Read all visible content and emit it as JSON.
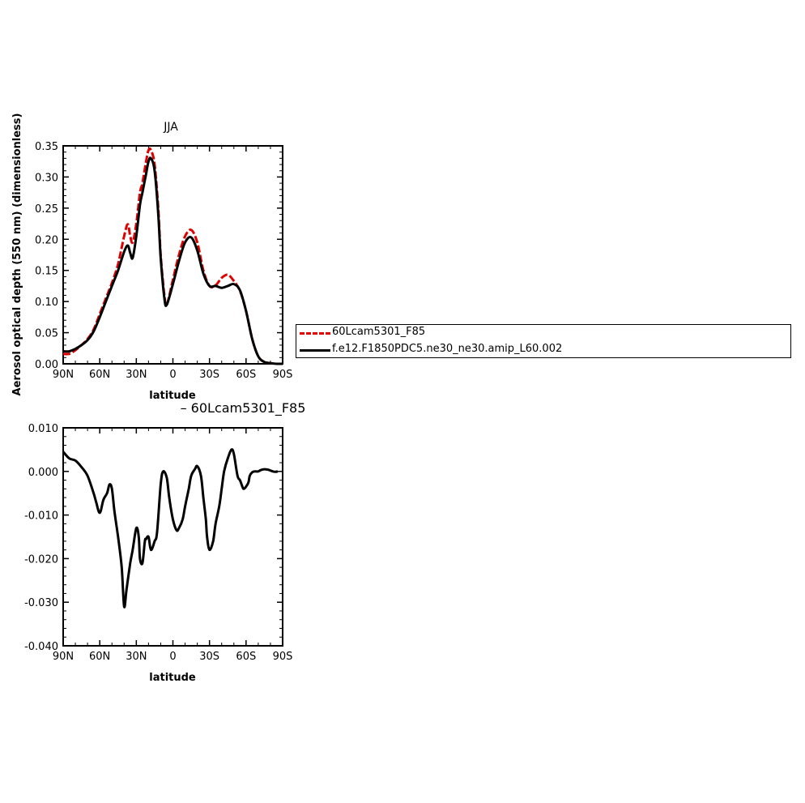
{
  "chart_data": [
    {
      "type": "line",
      "title": "JJA",
      "xlabel": "latitude",
      "ylabel": "Aerosol optical depth (550 nm) (dimensionless)",
      "x_ticks": [
        "90N",
        "60N",
        "30N",
        "0",
        "30S",
        "60S",
        "90S"
      ],
      "y_ticks": [
        "0.00",
        "0.05",
        "0.10",
        "0.15",
        "0.20",
        "0.25",
        "0.30",
        "0.35"
      ],
      "xlim": [
        90,
        -90
      ],
      "ylim": [
        0,
        0.35
      ],
      "grid": false,
      "legend_position": "right",
      "series": [
        {
          "name": "60Lcam5301_F85",
          "color": "#e00000",
          "dashed": true,
          "x": [
            90,
            85,
            80,
            75,
            70,
            65,
            60,
            55,
            50,
            45,
            40,
            37,
            35,
            33,
            30,
            27,
            25,
            22,
            20,
            18,
            15,
            12,
            10,
            7,
            5,
            0,
            -5,
            -10,
            -15,
            -20,
            -25,
            -30,
            -35,
            -40,
            -45,
            -50,
            -55,
            -60,
            -65,
            -70,
            -75,
            -80,
            -85,
            -90
          ],
          "y": [
            0.016,
            0.016,
            0.022,
            0.03,
            0.04,
            0.055,
            0.08,
            0.105,
            0.13,
            0.16,
            0.205,
            0.224,
            0.205,
            0.195,
            0.225,
            0.275,
            0.29,
            0.325,
            0.343,
            0.343,
            0.32,
            0.25,
            0.175,
            0.11,
            0.095,
            0.135,
            0.175,
            0.205,
            0.215,
            0.195,
            0.15,
            0.125,
            0.126,
            0.138,
            0.143,
            0.133,
            0.117,
            0.085,
            0.04,
            0.012,
            0.003,
            0.001,
            0.0,
            0.0
          ]
        },
        {
          "name": "f.e12.F1850PDC5.ne30_ne30.amip_L60.002",
          "color": "#000000",
          "dashed": false,
          "x": [
            90,
            85,
            80,
            75,
            70,
            65,
            60,
            55,
            50,
            45,
            40,
            37,
            35,
            33,
            30,
            27,
            25,
            22,
            20,
            18,
            15,
            12,
            10,
            7,
            5,
            0,
            -5,
            -10,
            -15,
            -20,
            -25,
            -30,
            -35,
            -40,
            -45,
            -50,
            -55,
            -60,
            -65,
            -70,
            -75,
            -80,
            -85,
            -90
          ],
          "y": [
            0.02,
            0.02,
            0.024,
            0.03,
            0.038,
            0.052,
            0.075,
            0.1,
            0.125,
            0.15,
            0.18,
            0.19,
            0.178,
            0.17,
            0.205,
            0.255,
            0.275,
            0.305,
            0.325,
            0.33,
            0.31,
            0.24,
            0.17,
            0.105,
            0.095,
            0.128,
            0.165,
            0.195,
            0.203,
            0.182,
            0.145,
            0.125,
            0.125,
            0.122,
            0.125,
            0.128,
            0.118,
            0.085,
            0.04,
            0.012,
            0.003,
            0.001,
            0.0,
            0.0
          ]
        }
      ]
    },
    {
      "type": "line",
      "title": "60Lcam5301_F85",
      "title_prefix": "–",
      "xlabel": "latitude",
      "x_ticks": [
        "90N",
        "60N",
        "30N",
        "0",
        "30S",
        "60S",
        "90S"
      ],
      "y_ticks": [
        "0.010",
        "0.000",
        "-0.010",
        "-0.020",
        "-0.030",
        "-0.040"
      ],
      "xlim": [
        90,
        -90
      ],
      "ylim": [
        -0.04,
        0.01
      ],
      "grid": false,
      "series": [
        {
          "color": "#000000",
          "x": [
            90,
            85,
            80,
            75,
            70,
            65,
            63,
            60,
            57,
            54,
            52,
            50,
            48,
            45,
            42,
            40,
            38,
            35,
            33,
            30,
            28,
            27,
            25,
            23,
            22,
            20,
            18,
            15,
            13,
            10,
            8,
            5,
            3,
            0,
            -3,
            -5,
            -8,
            -10,
            -13,
            -15,
            -18,
            -20,
            -23,
            -25,
            -27,
            -28,
            -30,
            -33,
            -35,
            -38,
            -40,
            -42,
            -45,
            -48,
            -50,
            -53,
            -55,
            -57,
            -58,
            -60,
            -62,
            -63,
            -65,
            -67,
            -70,
            -72,
            -75,
            -78,
            -80,
            -82,
            -84,
            -86
          ],
          "y": [
            0.0045,
            0.003,
            0.0025,
            0.001,
            -0.001,
            -0.005,
            -0.007,
            -0.0095,
            -0.0065,
            -0.005,
            -0.003,
            -0.004,
            -0.009,
            -0.015,
            -0.022,
            -0.031,
            -0.027,
            -0.021,
            -0.018,
            -0.013,
            -0.015,
            -0.02,
            -0.021,
            -0.016,
            -0.0155,
            -0.015,
            -0.018,
            -0.016,
            -0.014,
            -0.003,
            0.0,
            -0.0015,
            -0.006,
            -0.011,
            -0.0135,
            -0.013,
            -0.011,
            -0.008,
            -0.004,
            -0.001,
            0.0005,
            0.0012,
            -0.001,
            -0.006,
            -0.011,
            -0.015,
            -0.018,
            -0.016,
            -0.012,
            -0.008,
            -0.004,
            0.0,
            0.003,
            0.005,
            0.004,
            -0.001,
            -0.002,
            -0.0035,
            -0.004,
            -0.0035,
            -0.0025,
            -0.001,
            -0.0002,
            0.0,
            0.0,
            0.0003,
            0.0005,
            0.0004,
            0.0002,
            0.0,
            -0.0001,
            0.0
          ]
        }
      ]
    }
  ]
}
